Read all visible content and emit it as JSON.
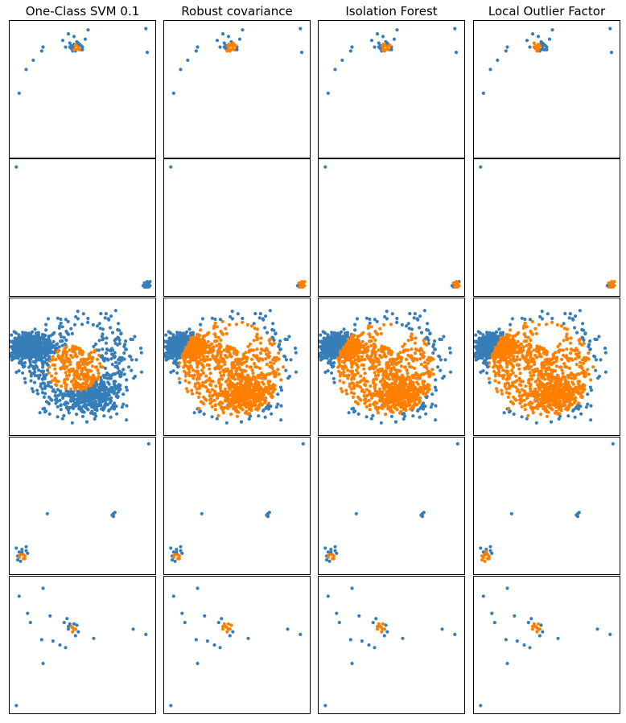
{
  "figure": {
    "columns": [
      "One-Class SVM 0.1",
      "Robust covariance",
      "Isolation Forest",
      "Local Outlier Factor"
    ],
    "rows": 5,
    "colors": {
      "outlier": "#377eb8",
      "inlier": "#ff7f00",
      "frame": "#000000"
    }
  },
  "chart_data": {
    "type": "scatter",
    "grid": false,
    "axes_ticks": false,
    "legend": "none",
    "columns": [
      "One-Class SVM 0.1",
      "Robust covariance",
      "Isolation Forest",
      "Local Outlier Factor"
    ],
    "rows": [
      {
        "xlim": [
          0,
          100
        ],
        "ylim": [
          0,
          100
        ],
        "points": [
          [
            54,
            95
          ],
          [
            40,
            92
          ],
          [
            41,
            85
          ],
          [
            36,
            87
          ],
          [
            38,
            82
          ],
          [
            46,
            86
          ],
          [
            52,
            88
          ],
          [
            44,
            90
          ],
          [
            21,
            79
          ],
          [
            22,
            82
          ],
          [
            15,
            72
          ],
          [
            10,
            65
          ],
          [
            5,
            47
          ],
          [
            95,
            96
          ],
          [
            96,
            78
          ],
          [
            44,
            81
          ],
          [
            47,
            83
          ],
          [
            49,
            80
          ],
          [
            42,
            83
          ],
          [
            45,
            79
          ],
          [
            48,
            84
          ],
          [
            43,
            82
          ],
          [
            50,
            82
          ],
          [
            46,
            80
          ],
          [
            44,
            84
          ],
          [
            47,
            81
          ],
          [
            42,
            81
          ],
          [
            46,
            84
          ],
          [
            48,
            80
          ],
          [
            45,
            83
          ],
          [
            50,
            80
          ],
          [
            41,
            82
          ],
          [
            43,
            79
          ],
          [
            47,
            85
          ],
          [
            49,
            83
          ],
          [
            44,
            80
          ]
        ],
        "inlier_centers": [
          [
            46,
            81.5
          ],
          [
            46,
            81.5
          ],
          [
            46,
            81.5
          ],
          [
            42,
            82.5
          ]
        ],
        "inlier_radii": [
          1.5,
          3,
          2.5,
          3
        ]
      },
      {
        "xlim": [
          0,
          100
        ],
        "ylim": [
          0,
          100
        ],
        "points": [
          [
            3,
            96
          ],
          [
            96,
            6
          ],
          [
            95,
            8
          ],
          [
            97,
            7
          ],
          [
            94,
            5
          ],
          [
            98,
            9
          ],
          [
            96,
            5
          ],
          [
            95,
            7
          ],
          [
            97,
            8
          ],
          [
            93,
            6
          ],
          [
            96,
            9
          ],
          [
            94,
            8
          ],
          [
            98,
            6
          ],
          [
            95,
            5
          ],
          [
            97,
            5
          ],
          [
            96,
            7
          ]
        ],
        "inlier_centers": [
          [
            96,
            7
          ],
          [
            96,
            7
          ],
          [
            96,
            7
          ],
          [
            96,
            7
          ]
        ],
        "inlier_radii": [
          0,
          2,
          1.5,
          2
        ]
      },
      {
        "xlim": [
          -1.2,
          1.2
        ],
        "ylim": [
          -1.2,
          1.2
        ],
        "points_generated": {
          "n": 1600,
          "description": "dense ring of points with a clear core and a hole near the upper centre"
        },
        "inlier_radius": [
          0.48,
          0.9,
          0.85,
          0.9
        ]
      },
      {
        "xlim": [
          0,
          100
        ],
        "ylim": [
          0,
          100
        ],
        "points": [
          [
            97,
            97
          ],
          [
            25,
            44
          ],
          [
            72,
            44
          ],
          [
            71,
            43
          ],
          [
            73,
            45
          ],
          [
            72,
            42
          ],
          [
            3,
            18
          ],
          [
            4,
            12
          ],
          [
            5,
            15
          ],
          [
            7,
            17
          ],
          [
            10,
            19
          ],
          [
            11,
            14
          ],
          [
            9,
            10
          ],
          [
            6,
            8
          ],
          [
            8,
            13
          ],
          [
            5,
            11
          ],
          [
            7,
            15
          ],
          [
            9,
            12
          ],
          [
            4,
            9
          ],
          [
            6,
            13
          ],
          [
            8,
            10
          ],
          [
            10,
            16
          ]
        ],
        "inlier_centers": [
          [
            7,
            11
          ],
          [
            7,
            11
          ],
          [
            7,
            11
          ],
          [
            7,
            10
          ]
        ],
        "inlier_radii": [
          2,
          2,
          2,
          4
        ]
      },
      {
        "xlim": [
          0,
          100
        ],
        "ylim": [
          0,
          100
        ],
        "points": [
          [
            5,
            87
          ],
          [
            22,
            93
          ],
          [
            11,
            74
          ],
          [
            13,
            67
          ],
          [
            27,
            72
          ],
          [
            37,
            67
          ],
          [
            39,
            70
          ],
          [
            21,
            54
          ],
          [
            34,
            50
          ],
          [
            38,
            48
          ],
          [
            29,
            53
          ],
          [
            40,
            64
          ],
          [
            43,
            63
          ],
          [
            45,
            62
          ],
          [
            58,
            55
          ],
          [
            86,
            62
          ],
          [
            95,
            58
          ],
          [
            22,
            36
          ],
          [
            3,
            4
          ],
          [
            45,
            57
          ],
          [
            44,
            62
          ],
          [
            42,
            64
          ],
          [
            47,
            60
          ],
          [
            41,
            66
          ],
          [
            43,
            60
          ],
          [
            46,
            65
          ],
          [
            44,
            66
          ],
          [
            40,
            62
          ]
        ],
        "inlier_centers": [
          [
            43,
            63
          ],
          [
            42,
            63
          ],
          [
            42,
            63
          ],
          [
            42,
            63
          ]
        ],
        "inlier_radii": [
          2,
          4,
          3,
          3
        ]
      }
    ]
  }
}
